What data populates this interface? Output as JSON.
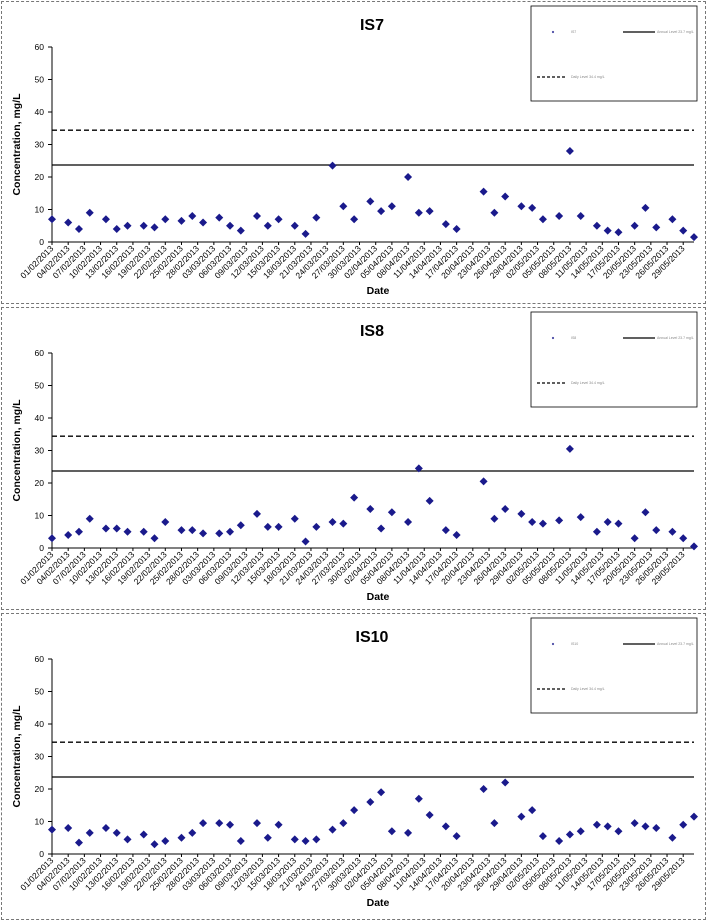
{
  "colors": {
    "marker": "#1a1a8c",
    "line": "#000000",
    "border": "#777777"
  },
  "chart_data": [
    {
      "type": "scatter",
      "title": "IS7",
      "xlabel": "Date",
      "ylabel": "Concentration, mg/L",
      "ylim": [
        0,
        60
      ],
      "yticks": [
        0,
        10,
        20,
        30,
        40,
        50,
        60
      ],
      "x_tick_labels": [
        "01/02/2013",
        "04/02/2013",
        "07/02/2013",
        "10/02/2013",
        "13/02/2013",
        "16/02/2013",
        "19/02/2013",
        "22/02/2013",
        "25/02/2013",
        "28/02/2013",
        "03/03/2013",
        "06/03/2013",
        "09/03/2013",
        "12/03/2013",
        "15/03/2013",
        "18/03/2013",
        "21/03/2013",
        "24/03/2013",
        "27/03/2013",
        "30/03/2013",
        "02/04/2013",
        "05/04/2013",
        "08/04/2013",
        "11/04/2013",
        "14/04/2013",
        "17/04/2013",
        "20/04/2013",
        "23/04/2013",
        "26/04/2013",
        "29/04/2013",
        "02/05/2013",
        "05/05/2013",
        "08/05/2013",
        "11/05/2013",
        "14/05/2013",
        "17/05/2013",
        "20/05/2013",
        "23/05/2013",
        "26/05/2013",
        "29/05/2013"
      ],
      "x_start": "01/02/2013",
      "x_end": "31/05/2013",
      "grid": false,
      "legend_position": "top-right",
      "legend_text": [
        "IS7",
        "Annual Level 23.7 mg/L",
        "Daily Level 34.4 mg/L"
      ],
      "reference_lines": [
        {
          "value": 23.7,
          "style": "solid"
        },
        {
          "value": 34.4,
          "style": "dashed"
        }
      ],
      "points": [
        [
          "01/02/2013",
          7
        ],
        [
          "04/02/2013",
          6
        ],
        [
          "06/02/2013",
          4
        ],
        [
          "08/02/2013",
          9
        ],
        [
          "11/02/2013",
          7
        ],
        [
          "13/02/2013",
          4
        ],
        [
          "15/02/2013",
          5
        ],
        [
          "18/02/2013",
          5
        ],
        [
          "20/02/2013",
          4.5
        ],
        [
          "22/02/2013",
          7
        ],
        [
          "25/02/2013",
          6.5
        ],
        [
          "27/02/2013",
          8
        ],
        [
          "01/03/2013",
          6
        ],
        [
          "04/03/2013",
          7.5
        ],
        [
          "06/03/2013",
          5
        ],
        [
          "08/03/2013",
          3.5
        ],
        [
          "11/03/2013",
          8
        ],
        [
          "13/03/2013",
          5
        ],
        [
          "15/03/2013",
          7
        ],
        [
          "18/03/2013",
          5
        ],
        [
          "20/03/2013",
          2.5
        ],
        [
          "22/03/2013",
          7.5
        ],
        [
          "25/03/2013",
          23.5
        ],
        [
          "27/03/2013",
          11
        ],
        [
          "29/03/2013",
          7
        ],
        [
          "01/04/2013",
          12.5
        ],
        [
          "03/04/2013",
          9.5
        ],
        [
          "05/04/2013",
          11
        ],
        [
          "08/04/2013",
          20
        ],
        [
          "10/04/2013",
          9
        ],
        [
          "12/04/2013",
          9.5
        ],
        [
          "15/04/2013",
          5.5
        ],
        [
          "17/04/2013",
          4
        ],
        [
          "22/04/2013",
          15.5
        ],
        [
          "24/04/2013",
          9
        ],
        [
          "26/04/2013",
          14
        ],
        [
          "29/04/2013",
          11
        ],
        [
          "01/05/2013",
          10.5
        ],
        [
          "03/05/2013",
          7
        ],
        [
          "06/05/2013",
          8
        ],
        [
          "08/05/2013",
          28
        ],
        [
          "10/05/2013",
          8
        ],
        [
          "13/05/2013",
          5
        ],
        [
          "15/05/2013",
          3.5
        ],
        [
          "17/05/2013",
          3
        ],
        [
          "20/05/2013",
          5
        ],
        [
          "22/05/2013",
          10.5
        ],
        [
          "24/05/2013",
          4.5
        ],
        [
          "27/05/2013",
          7
        ],
        [
          "29/05/2013",
          3.5
        ],
        [
          "31/05/2013",
          1.5
        ]
      ]
    },
    {
      "type": "scatter",
      "title": "IS8",
      "xlabel": "Date",
      "ylabel": "Concentration, mg/L",
      "ylim": [
        0,
        60
      ],
      "yticks": [
        0,
        10,
        20,
        30,
        40,
        50,
        60
      ],
      "x_tick_labels": [
        "01/02/2013",
        "04/02/2013",
        "07/02/2013",
        "10/02/2013",
        "13/02/2013",
        "16/02/2013",
        "19/02/2013",
        "22/02/2013",
        "25/02/2013",
        "28/02/2013",
        "03/03/2013",
        "06/03/2013",
        "09/03/2013",
        "12/03/2013",
        "15/03/2013",
        "18/03/2013",
        "21/03/2013",
        "24/03/2013",
        "27/03/2013",
        "30/03/2013",
        "02/04/2013",
        "05/04/2013",
        "08/04/2013",
        "11/04/2013",
        "14/04/2013",
        "17/04/2013",
        "20/04/2013",
        "23/04/2013",
        "26/04/2013",
        "29/04/2013",
        "02/05/2013",
        "05/05/2013",
        "08/05/2013",
        "11/05/2013",
        "14/05/2013",
        "17/05/2013",
        "20/05/2013",
        "23/05/2013",
        "26/05/2013",
        "29/05/2013"
      ],
      "x_start": "01/02/2013",
      "x_end": "31/05/2013",
      "grid": false,
      "legend_position": "top-right",
      "legend_text": [
        "IS8",
        "Annual Level 23.7 mg/L",
        "Daily Level 34.4 mg/L"
      ],
      "reference_lines": [
        {
          "value": 23.7,
          "style": "solid"
        },
        {
          "value": 34.4,
          "style": "dashed"
        }
      ],
      "points": [
        [
          "01/02/2013",
          3
        ],
        [
          "04/02/2013",
          4
        ],
        [
          "06/02/2013",
          5
        ],
        [
          "08/02/2013",
          9
        ],
        [
          "11/02/2013",
          6
        ],
        [
          "13/02/2013",
          6
        ],
        [
          "15/02/2013",
          5
        ],
        [
          "18/02/2013",
          5
        ],
        [
          "20/02/2013",
          3
        ],
        [
          "22/02/2013",
          8
        ],
        [
          "25/02/2013",
          5.5
        ],
        [
          "27/02/2013",
          5.5
        ],
        [
          "01/03/2013",
          4.5
        ],
        [
          "04/03/2013",
          4.5
        ],
        [
          "06/03/2013",
          5
        ],
        [
          "08/03/2013",
          7
        ],
        [
          "11/03/2013",
          10.5
        ],
        [
          "13/03/2013",
          6.5
        ],
        [
          "15/03/2013",
          6.5
        ],
        [
          "18/03/2013",
          9
        ],
        [
          "20/03/2013",
          2
        ],
        [
          "22/03/2013",
          6.5
        ],
        [
          "25/03/2013",
          8
        ],
        [
          "27/03/2013",
          7.5
        ],
        [
          "29/03/2013",
          15.5
        ],
        [
          "01/04/2013",
          12
        ],
        [
          "03/04/2013",
          6
        ],
        [
          "05/04/2013",
          11
        ],
        [
          "08/04/2013",
          8
        ],
        [
          "10/04/2013",
          24.5
        ],
        [
          "12/04/2013",
          14.5
        ],
        [
          "15/04/2013",
          5.5
        ],
        [
          "17/04/2013",
          4
        ],
        [
          "22/04/2013",
          20.5
        ],
        [
          "24/04/2013",
          9
        ],
        [
          "26/04/2013",
          12
        ],
        [
          "29/04/2013",
          10.5
        ],
        [
          "01/05/2013",
          8
        ],
        [
          "03/05/2013",
          7.5
        ],
        [
          "06/05/2013",
          8.5
        ],
        [
          "08/05/2013",
          30.5
        ],
        [
          "10/05/2013",
          9.5
        ],
        [
          "13/05/2013",
          5
        ],
        [
          "15/05/2013",
          8
        ],
        [
          "17/05/2013",
          7.5
        ],
        [
          "20/05/2013",
          3
        ],
        [
          "22/05/2013",
          11
        ],
        [
          "24/05/2013",
          5.5
        ],
        [
          "27/05/2013",
          5
        ],
        [
          "29/05/2013",
          3
        ],
        [
          "31/05/2013",
          0.5
        ]
      ]
    },
    {
      "type": "scatter",
      "title": "IS10",
      "xlabel": "Date",
      "ylabel": "Concentration, mg/L",
      "ylim": [
        0,
        60
      ],
      "yticks": [
        0,
        10,
        20,
        30,
        40,
        50,
        60
      ],
      "x_tick_labels": [
        "01/02/2013",
        "04/02/2013",
        "07/02/2013",
        "10/02/2013",
        "13/02/2013",
        "16/02/2013",
        "19/02/2013",
        "22/02/2013",
        "25/02/2013",
        "28/02/2013",
        "03/03/2013",
        "06/03/2013",
        "09/03/2013",
        "12/03/2013",
        "15/03/2013",
        "18/03/2013",
        "21/03/2013",
        "24/03/2013",
        "27/03/2013",
        "30/03/2013",
        "02/04/2013",
        "05/04/2013",
        "08/04/2013",
        "11/04/2013",
        "14/04/2013",
        "17/04/2013",
        "20/04/2013",
        "23/04/2013",
        "26/04/2013",
        "29/04/2013",
        "02/05/2013",
        "05/05/2013",
        "08/05/2013",
        "11/05/2013",
        "14/05/2013",
        "17/05/2013",
        "20/05/2013",
        "23/05/2013",
        "26/05/2013",
        "29/05/2013"
      ],
      "x_start": "01/02/2013",
      "x_end": "31/05/2013",
      "grid": false,
      "legend_position": "top-right",
      "legend_text": [
        "IS10",
        "Annual Level 23.7 mg/L",
        "Daily Level 34.4 mg/L"
      ],
      "reference_lines": [
        {
          "value": 23.7,
          "style": "solid"
        },
        {
          "value": 34.4,
          "style": "dashed"
        }
      ],
      "points": [
        [
          "01/02/2013",
          7.5
        ],
        [
          "04/02/2013",
          8
        ],
        [
          "06/02/2013",
          3.5
        ],
        [
          "08/02/2013",
          6.5
        ],
        [
          "11/02/2013",
          8
        ],
        [
          "13/02/2013",
          6.5
        ],
        [
          "15/02/2013",
          4.5
        ],
        [
          "18/02/2013",
          6
        ],
        [
          "20/02/2013",
          3
        ],
        [
          "22/02/2013",
          4
        ],
        [
          "25/02/2013",
          5
        ],
        [
          "27/02/2013",
          6.5
        ],
        [
          "01/03/2013",
          9.5
        ],
        [
          "04/03/2013",
          9.5
        ],
        [
          "06/03/2013",
          9
        ],
        [
          "08/03/2013",
          4
        ],
        [
          "11/03/2013",
          9.5
        ],
        [
          "13/03/2013",
          5
        ],
        [
          "15/03/2013",
          9
        ],
        [
          "18/03/2013",
          4.5
        ],
        [
          "20/03/2013",
          4
        ],
        [
          "22/03/2013",
          4.5
        ],
        [
          "25/03/2013",
          7.5
        ],
        [
          "27/03/2013",
          9.5
        ],
        [
          "29/03/2013",
          13.5
        ],
        [
          "01/04/2013",
          16
        ],
        [
          "03/04/2013",
          19
        ],
        [
          "05/04/2013",
          7
        ],
        [
          "08/04/2013",
          6.5
        ],
        [
          "10/04/2013",
          17
        ],
        [
          "12/04/2013",
          12
        ],
        [
          "15/04/2013",
          8.5
        ],
        [
          "17/04/2013",
          5.5
        ],
        [
          "22/04/2013",
          20
        ],
        [
          "24/04/2013",
          9.5
        ],
        [
          "26/04/2013",
          22
        ],
        [
          "29/04/2013",
          11.5
        ],
        [
          "01/05/2013",
          13.5
        ],
        [
          "03/05/2013",
          5.5
        ],
        [
          "06/05/2013",
          4
        ],
        [
          "08/05/2013",
          6
        ],
        [
          "10/05/2013",
          7
        ],
        [
          "13/05/2013",
          9
        ],
        [
          "15/05/2013",
          8.5
        ],
        [
          "17/05/2013",
          7
        ],
        [
          "20/05/2013",
          9.5
        ],
        [
          "22/05/2013",
          8.5
        ],
        [
          "24/05/2013",
          8
        ],
        [
          "27/05/2013",
          5
        ],
        [
          "29/05/2013",
          9
        ],
        [
          "31/05/2013",
          11.5
        ]
      ]
    }
  ]
}
